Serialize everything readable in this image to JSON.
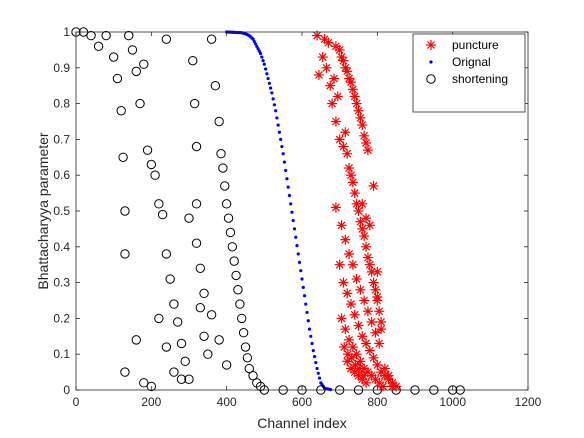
{
  "chart_data": {
    "type": "scatter",
    "title": "",
    "xlabel": "Channel index",
    "ylabel": "Bhattacharyya parameter",
    "xlim": [
      0,
      1200
    ],
    "ylim": [
      0,
      1
    ],
    "xticks": [
      0,
      200,
      400,
      600,
      800,
      1000,
      1200
    ],
    "yticks": [
      0,
      0.1,
      0.2,
      0.3,
      0.4,
      0.5,
      0.6,
      0.7,
      0.8,
      0.9,
      1
    ],
    "grid": false,
    "legend_position": "top-right",
    "series": [
      {
        "name": "puncture",
        "marker": "asterisk",
        "color": "#ff0000",
        "points": [
          [
            640,
            0.99
          ],
          [
            660,
            0.98
          ],
          [
            670,
            0.97
          ],
          [
            690,
            0.96
          ],
          [
            700,
            0.95
          ],
          [
            705,
            0.93
          ],
          [
            710,
            0.92
          ],
          [
            715,
            0.9
          ],
          [
            720,
            0.89
          ],
          [
            725,
            0.87
          ],
          [
            730,
            0.86
          ],
          [
            735,
            0.84
          ],
          [
            740,
            0.82
          ],
          [
            745,
            0.8
          ],
          [
            750,
            0.78
          ],
          [
            755,
            0.76
          ],
          [
            760,
            0.74
          ],
          [
            765,
            0.71
          ],
          [
            770,
            0.69
          ],
          [
            775,
            0.67
          ],
          [
            680,
            0.8
          ],
          [
            690,
            0.75
          ],
          [
            700,
            0.7
          ],
          [
            710,
            0.68
          ],
          [
            715,
            0.72
          ],
          [
            720,
            0.66
          ],
          [
            725,
            0.62
          ],
          [
            730,
            0.6
          ],
          [
            735,
            0.58
          ],
          [
            740,
            0.55
          ],
          [
            745,
            0.52
          ],
          [
            750,
            0.5
          ],
          [
            755,
            0.47
          ],
          [
            760,
            0.45
          ],
          [
            765,
            0.43
          ],
          [
            770,
            0.4
          ],
          [
            775,
            0.37
          ],
          [
            780,
            0.35
          ],
          [
            785,
            0.33
          ],
          [
            790,
            0.3
          ],
          [
            795,
            0.28
          ],
          [
            800,
            0.25
          ],
          [
            805,
            0.22
          ],
          [
            810,
            0.19
          ],
          [
            690,
            0.51
          ],
          [
            705,
            0.46
          ],
          [
            715,
            0.42
          ],
          [
            725,
            0.38
          ],
          [
            735,
            0.35
          ],
          [
            745,
            0.31
          ],
          [
            755,
            0.28
          ],
          [
            765,
            0.25
          ],
          [
            775,
            0.22
          ],
          [
            785,
            0.19
          ],
          [
            795,
            0.16
          ],
          [
            805,
            0.13
          ],
          [
            700,
            0.35
          ],
          [
            710,
            0.3
          ],
          [
            720,
            0.27
          ],
          [
            730,
            0.24
          ],
          [
            740,
            0.21
          ],
          [
            750,
            0.18
          ],
          [
            760,
            0.15
          ],
          [
            770,
            0.13
          ],
          [
            780,
            0.11
          ],
          [
            790,
            0.09
          ],
          [
            800,
            0.07
          ],
          [
            810,
            0.05
          ],
          [
            820,
            0.04
          ],
          [
            830,
            0.03
          ],
          [
            840,
            0.02
          ],
          [
            850,
            0.01
          ],
          [
            705,
            0.2
          ],
          [
            715,
            0.17
          ],
          [
            725,
            0.14
          ],
          [
            735,
            0.12
          ],
          [
            745,
            0.1
          ],
          [
            755,
            0.08
          ],
          [
            765,
            0.06
          ],
          [
            775,
            0.05
          ],
          [
            785,
            0.04
          ],
          [
            795,
            0.03
          ],
          [
            805,
            0.02
          ],
          [
            815,
            0.01
          ],
          [
            720,
            0.08
          ],
          [
            730,
            0.06
          ],
          [
            740,
            0.05
          ],
          [
            750,
            0.04
          ],
          [
            760,
            0.03
          ],
          [
            770,
            0.02
          ],
          [
            712,
            0.12
          ],
          [
            722,
            0.1
          ],
          [
            732,
            0.09
          ],
          [
            742,
            0.07
          ],
          [
            752,
            0.06
          ],
          [
            762,
            0.04
          ],
          [
            800,
            0.33
          ],
          [
            810,
            0.17
          ],
          [
            820,
            0.06
          ],
          [
            830,
            0.04
          ],
          [
            840,
            0.01
          ],
          [
            760,
            0.52
          ],
          [
            770,
            0.48
          ],
          [
            780,
            0.46
          ],
          [
            790,
            0.57
          ],
          [
            800,
            0.26
          ],
          [
            645,
            0.88
          ],
          [
            655,
            0.93
          ],
          [
            665,
            0.9
          ],
          [
            675,
            0.85
          ],
          [
            685,
            0.87
          ],
          [
            695,
            0.82
          ]
        ]
      },
      {
        "name": "Orignal",
        "marker": "dot",
        "color": "#0000ff",
        "points": [
          [
            400,
            1.0
          ],
          [
            420,
            0.999
          ],
          [
            440,
            0.998
          ],
          [
            450,
            0.995
          ],
          [
            460,
            0.99
          ],
          [
            470,
            0.98
          ],
          [
            480,
            0.96
          ],
          [
            490,
            0.94
          ],
          [
            500,
            0.91
          ],
          [
            510,
            0.87
          ],
          [
            520,
            0.83
          ],
          [
            530,
            0.78
          ],
          [
            540,
            0.72
          ],
          [
            550,
            0.66
          ],
          [
            560,
            0.59
          ],
          [
            570,
            0.52
          ],
          [
            580,
            0.45
          ],
          [
            590,
            0.38
          ],
          [
            600,
            0.31
          ],
          [
            610,
            0.24
          ],
          [
            620,
            0.17
          ],
          [
            630,
            0.11
          ],
          [
            640,
            0.06
          ],
          [
            650,
            0.02
          ],
          [
            660,
            0.005
          ],
          [
            680,
            0.0
          ]
        ]
      },
      {
        "name": "shortening",
        "marker": "circle",
        "color": "#000000",
        "points": [
          [
            0,
            1.0
          ],
          [
            20,
            1.0
          ],
          [
            40,
            0.99
          ],
          [
            60,
            0.96
          ],
          [
            80,
            0.99
          ],
          [
            100,
            0.93
          ],
          [
            110,
            0.87
          ],
          [
            120,
            0.78
          ],
          [
            125,
            0.65
          ],
          [
            130,
            0.5
          ],
          [
            130,
            0.38
          ],
          [
            130,
            0.05
          ],
          [
            140,
            0.99
          ],
          [
            150,
            0.95
          ],
          [
            160,
            0.89
          ],
          [
            170,
            0.8
          ],
          [
            180,
            0.91
          ],
          [
            190,
            0.67
          ],
          [
            200,
            0.63
          ],
          [
            210,
            0.6
          ],
          [
            220,
            0.52
          ],
          [
            230,
            0.49
          ],
          [
            240,
            0.98
          ],
          [
            240,
            0.38
          ],
          [
            250,
            0.31
          ],
          [
            260,
            0.24
          ],
          [
            270,
            0.19
          ],
          [
            280,
            0.13
          ],
          [
            290,
            0.08
          ],
          [
            300,
            0.03
          ],
          [
            310,
            0.92
          ],
          [
            315,
            0.8
          ],
          [
            320,
            0.68
          ],
          [
            320,
            0.52
          ],
          [
            330,
            0.34
          ],
          [
            330,
            0.23
          ],
          [
            340,
            0.15
          ],
          [
            350,
            0.1
          ],
          [
            360,
            0.98
          ],
          [
            370,
            0.85
          ],
          [
            380,
            0.75
          ],
          [
            385,
            0.66
          ],
          [
            390,
            0.62
          ],
          [
            395,
            0.57
          ],
          [
            400,
            0.52
          ],
          [
            405,
            0.48
          ],
          [
            410,
            0.44
          ],
          [
            415,
            0.4
          ],
          [
            420,
            0.36
          ],
          [
            425,
            0.32
          ],
          [
            430,
            0.28
          ],
          [
            435,
            0.24
          ],
          [
            440,
            0.2
          ],
          [
            445,
            0.16
          ],
          [
            450,
            0.12
          ],
          [
            455,
            0.09
          ],
          [
            460,
            0.06
          ],
          [
            470,
            0.04
          ],
          [
            480,
            0.02
          ],
          [
            490,
            0.01
          ],
          [
            500,
            0.0
          ],
          [
            550,
            0.0
          ],
          [
            600,
            0.0
          ],
          [
            650,
            0.0
          ],
          [
            700,
            0.0
          ],
          [
            750,
            0.0
          ],
          [
            800,
            0.0
          ],
          [
            850,
            0.0
          ],
          [
            900,
            0.0
          ],
          [
            950,
            0.0
          ],
          [
            1000,
            0.0
          ],
          [
            1020,
            0.0
          ],
          [
            160,
            0.14
          ],
          [
            180,
            0.02
          ],
          [
            200,
            0.01
          ],
          [
            220,
            0.2
          ],
          [
            240,
            0.12
          ],
          [
            260,
            0.05
          ],
          [
            280,
            0.03
          ],
          [
            300,
            0.48
          ],
          [
            320,
            0.41
          ],
          [
            340,
            0.27
          ],
          [
            360,
            0.21
          ],
          [
            380,
            0.14
          ],
          [
            400,
            0.07
          ]
        ]
      }
    ]
  }
}
